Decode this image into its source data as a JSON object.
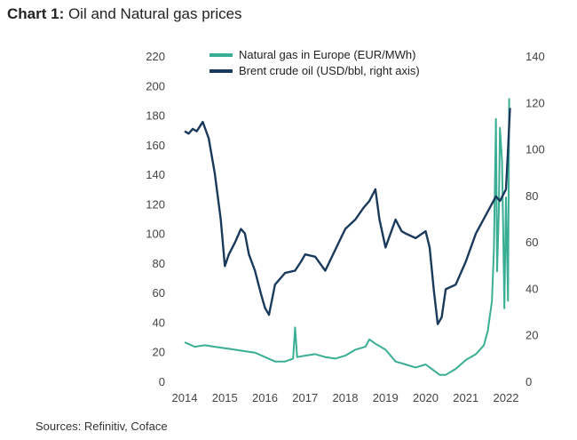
{
  "title_prefix": "Chart 1:",
  "title_text": " Oil and Natural gas prices",
  "source": "Sources: Refinitiv, Coface",
  "chart_data": {
    "type": "line",
    "title": "Oil and Natural gas prices",
    "x_ticks": [
      "2014",
      "2015",
      "2016",
      "2017",
      "2018",
      "2019",
      "2020",
      "2021",
      "2022"
    ],
    "xlim": [
      2014,
      2022
    ],
    "left_axis": {
      "ylim": [
        0,
        220
      ],
      "ticks": [
        0,
        20,
        40,
        60,
        80,
        100,
        120,
        140,
        160,
        180,
        200,
        220
      ]
    },
    "right_axis": {
      "ylim": [
        0,
        140
      ],
      "ticks": [
        0,
        20,
        40,
        60,
        80,
        100,
        120,
        140
      ]
    },
    "legend_position": "top-center",
    "series": [
      {
        "name": "Natural gas in Europe (EUR/MWh)",
        "axis": "left",
        "color": "#3aae94",
        "x": [
          2014.0,
          2014.25,
          2014.5,
          2014.75,
          2015.0,
          2015.25,
          2015.5,
          2015.75,
          2016.0,
          2016.25,
          2016.5,
          2016.7,
          2016.75,
          2016.8,
          2017.0,
          2017.25,
          2017.5,
          2017.75,
          2018.0,
          2018.25,
          2018.5,
          2018.6,
          2018.75,
          2019.0,
          2019.25,
          2019.5,
          2019.75,
          2020.0,
          2020.2,
          2020.35,
          2020.5,
          2020.75,
          2021.0,
          2021.25,
          2021.45,
          2021.55,
          2021.65,
          2021.7,
          2021.75,
          2021.78,
          2021.82,
          2021.85,
          2021.9,
          2021.93,
          2021.96,
          2022.0,
          2022.05,
          2022.08
        ],
        "y": [
          27,
          24,
          25,
          24,
          23,
          22,
          21,
          20,
          17,
          14,
          14,
          16,
          37,
          17,
          18,
          19,
          17,
          16,
          18,
          22,
          24,
          29,
          26,
          22,
          14,
          12,
          10,
          12,
          8,
          5,
          5,
          9,
          15,
          19,
          25,
          35,
          55,
          90,
          178,
          75,
          115,
          172,
          150,
          105,
          50,
          125,
          55,
          192
        ]
      },
      {
        "name": "Brent crude oil (USD/bbl, right axis)",
        "axis": "right",
        "color": "#1a3a5c",
        "x": [
          2014.0,
          2014.1,
          2014.2,
          2014.3,
          2014.45,
          2014.6,
          2014.75,
          2014.9,
          2015.0,
          2015.1,
          2015.25,
          2015.4,
          2015.5,
          2015.6,
          2015.75,
          2015.9,
          2016.0,
          2016.1,
          2016.25,
          2016.5,
          2016.75,
          2016.9,
          2017.0,
          2017.25,
          2017.5,
          2017.75,
          2018.0,
          2018.25,
          2018.45,
          2018.6,
          2018.75,
          2018.85,
          2019.0,
          2019.25,
          2019.4,
          2019.5,
          2019.75,
          2020.0,
          2020.1,
          2020.2,
          2020.3,
          2020.4,
          2020.5,
          2020.75,
          2021.0,
          2021.25,
          2021.5,
          2021.75,
          2021.85,
          2022.0,
          2022.05,
          2022.1
        ],
        "y": [
          108,
          107,
          109,
          108,
          112,
          105,
          90,
          70,
          50,
          55,
          60,
          66,
          64,
          55,
          48,
          38,
          32,
          29,
          42,
          47,
          48,
          52,
          55,
          54,
          48,
          57,
          66,
          70,
          75,
          78,
          83,
          70,
          58,
          70,
          65,
          64,
          62,
          65,
          58,
          40,
          25,
          28,
          40,
          42,
          52,
          64,
          72,
          80,
          78,
          83,
          100,
          118
        ]
      }
    ]
  }
}
